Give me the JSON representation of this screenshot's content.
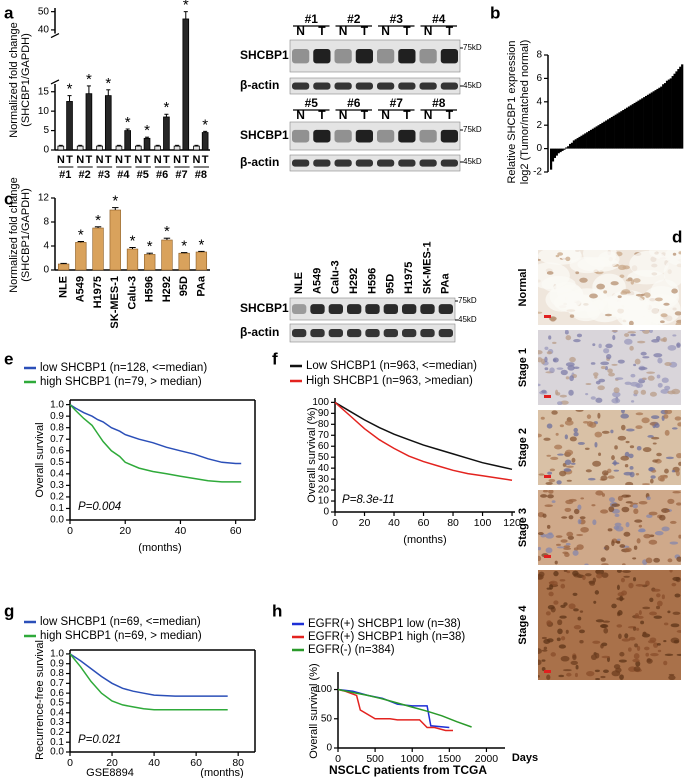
{
  "panel_labels": [
    "a",
    "b",
    "c",
    "d",
    "e",
    "f",
    "g",
    "h"
  ],
  "chart_data": [
    {
      "type": "bar",
      "y_label": [
        "Normalized fold change",
        "(SHCBP1/GAPDH)"
      ],
      "categories": [
        "#1",
        "#2",
        "#3",
        "#4",
        "#5",
        "#6",
        "#7",
        "#8"
      ],
      "series": [
        {
          "name": "N",
          "color": "#e6e6e6",
          "values": [
            1,
            1,
            1,
            1,
            1,
            1,
            1,
            1
          ],
          "errors": [
            0.2,
            0.2,
            0.2,
            0.2,
            0.2,
            0.2,
            0.2,
            0.2
          ]
        },
        {
          "name": "T",
          "color": "#262626",
          "values": [
            12.5,
            14.5,
            14,
            5,
            3,
            8.5,
            46,
            4.5
          ],
          "errors": [
            1.5,
            2,
            1.5,
            0.4,
            0.3,
            0.7,
            4,
            0.3
          ],
          "starred": true
        }
      ],
      "significance_label": "*",
      "ylim": [
        0,
        52
      ],
      "axis_break": [
        17,
        38
      ],
      "yticks": [
        0,
        5,
        10,
        15,
        40,
        50
      ]
    },
    {
      "type": "bar",
      "y_label": [
        "Relative SHCBP1 expression",
        "log2 (Tumor/matched normal)"
      ],
      "values": [
        -1.8,
        -1.1,
        -0.8,
        -0.6,
        -0.4,
        -0.3,
        -0.2,
        -0.1,
        0.1,
        0.2,
        0.4,
        0.5,
        0.7,
        0.8,
        0.9,
        1.0,
        1.1,
        1.2,
        1.3,
        1.4,
        1.5,
        1.6,
        1.7,
        1.8,
        1.9,
        2.0,
        2.1,
        2.2,
        2.3,
        2.4,
        2.5,
        2.6,
        2.7,
        2.8,
        2.9,
        3.0,
        3.1,
        3.2,
        3.3,
        3.4,
        3.5,
        3.6,
        3.7,
        3.8,
        3.9,
        4.0,
        4.1,
        4.2,
        4.3,
        4.4,
        4.5,
        4.6,
        4.7,
        4.8,
        4.9,
        5.0,
        5.1,
        5.2,
        5.3,
        5.5,
        5.6,
        5.8,
        5.9,
        6.0,
        6.2,
        6.4,
        6.6,
        6.8,
        7.0,
        7.2
      ],
      "color": "#000000",
      "ylim": [
        -2,
        8
      ],
      "yticks": [
        -2,
        0,
        2,
        4,
        6,
        8
      ]
    },
    {
      "type": "bar",
      "y_label": [
        "Normalized fold change",
        "(SHCBP1/GAPDH)"
      ],
      "categories": [
        "NLE",
        "A549",
        "H1975",
        "SK-MES-1",
        "Calu-3",
        "H596",
        "H292",
        "95D",
        "PAa"
      ],
      "values": [
        1,
        4.6,
        7,
        10,
        3.5,
        2.6,
        5,
        2.8,
        3
      ],
      "errors": [
        0.1,
        0.15,
        0.2,
        0.4,
        0.25,
        0.2,
        0.3,
        0.1,
        0.1
      ],
      "color": "#d9a25c",
      "significant": [
        false,
        true,
        true,
        true,
        true,
        true,
        true,
        true,
        true
      ],
      "significance_label": "*",
      "ylim": [
        0,
        12
      ],
      "yticks": [
        0,
        4,
        8,
        12
      ]
    },
    {
      "type": "line",
      "y_label": "Overall survival",
      "x_label": "(months)",
      "annotation": "P=0.004",
      "frame": true,
      "series": [
        {
          "name": "low SHCBP1 (n=128, <=median)",
          "color": "#2b4fb8",
          "x": [
            0,
            2,
            5,
            8,
            10,
            12,
            15,
            18,
            20,
            25,
            30,
            35,
            40,
            45,
            50,
            55,
            60,
            62
          ],
          "values": [
            1,
            0.97,
            0.93,
            0.9,
            0.87,
            0.85,
            0.8,
            0.77,
            0.74,
            0.7,
            0.67,
            0.63,
            0.6,
            0.57,
            0.53,
            0.5,
            0.49,
            0.49
          ]
        },
        {
          "name": "high SHCBP1 (n=79, > median)",
          "color": "#2faa3a",
          "x": [
            0,
            2,
            5,
            8,
            10,
            12,
            15,
            18,
            20,
            25,
            30,
            35,
            40,
            45,
            50,
            55,
            60,
            62
          ],
          "values": [
            1,
            0.95,
            0.88,
            0.82,
            0.75,
            0.68,
            0.6,
            0.55,
            0.5,
            0.45,
            0.42,
            0.4,
            0.38,
            0.36,
            0.34,
            0.33,
            0.33,
            0.33
          ]
        }
      ],
      "xlim": [
        0,
        67
      ],
      "xticks": [
        0,
        20,
        40,
        60
      ],
      "ylim": [
        0,
        1.04
      ],
      "yticks": [
        {
          "value": 0,
          "label": "0.0"
        },
        {
          "value": 0.1,
          "label": "0.1"
        },
        {
          "value": 0.2,
          "label": "0.2"
        },
        {
          "value": 0.3,
          "label": "0.3"
        },
        {
          "value": 0.4,
          "label": "0.4"
        },
        {
          "value": 0.5,
          "label": "0.5"
        },
        {
          "value": 0.6,
          "label": "0.6"
        },
        {
          "value": 0.7,
          "label": "0.7"
        },
        {
          "value": 0.8,
          "label": "0.8"
        },
        {
          "value": 0.9,
          "label": "0.9"
        },
        {
          "value": 1,
          "label": "1.0"
        }
      ]
    },
    {
      "type": "line",
      "y_label": "Overall survival (%)",
      "x_label": "(months)",
      "annotation": "P=8.3e-11",
      "frame": false,
      "series": [
        {
          "name": "Low SHCBP1 (n=963, <=median)",
          "color": "#111111",
          "x": [
            0,
            10,
            20,
            30,
            40,
            50,
            60,
            70,
            80,
            90,
            100,
            110,
            120
          ],
          "values": [
            100,
            92,
            84,
            77,
            71,
            66,
            61,
            57,
            53,
            49,
            45,
            42,
            39
          ]
        },
        {
          "name": "High SHCBP1 (n=963, >median)",
          "color": "#e3231f",
          "x": [
            0,
            10,
            20,
            30,
            40,
            50,
            60,
            70,
            80,
            90,
            100,
            110,
            120
          ],
          "values": [
            100,
            88,
            76,
            66,
            58,
            51,
            46,
            42,
            38,
            35,
            33,
            31,
            29
          ]
        }
      ],
      "xlim": [
        0,
        122
      ],
      "xticks": [
        0,
        20,
        40,
        60,
        80,
        100,
        120
      ],
      "ylim": [
        0,
        104
      ],
      "yticks": [
        0,
        10,
        20,
        30,
        40,
        50,
        60,
        70,
        80,
        90,
        100
      ]
    },
    {
      "type": "line",
      "y_label": "Recurrence-free survival",
      "x_label": "(months)",
      "annotation": "P=0.021",
      "note": "GSE8894",
      "frame": true,
      "series": [
        {
          "name": "low  SHCBP1 (n=69, <=median)",
          "color": "#2b4fb8",
          "x": [
            0,
            5,
            10,
            15,
            20,
            25,
            30,
            35,
            40,
            50,
            60,
            70,
            75
          ],
          "values": [
            1,
            0.93,
            0.85,
            0.77,
            0.7,
            0.65,
            0.62,
            0.6,
            0.58,
            0.57,
            0.57,
            0.57,
            0.57
          ]
        },
        {
          "name": "high SHCBP1 (n=69, > median)",
          "color": "#2faa3a",
          "x": [
            0,
            5,
            10,
            15,
            20,
            25,
            30,
            35,
            40,
            50,
            60,
            70,
            75
          ],
          "values": [
            1,
            0.87,
            0.72,
            0.6,
            0.52,
            0.48,
            0.46,
            0.44,
            0.43,
            0.43,
            0.43,
            0.43,
            0.43
          ]
        }
      ],
      "xlim": [
        0,
        88
      ],
      "xticks": [
        0,
        20,
        40,
        60,
        80
      ],
      "ylim": [
        0,
        1.04
      ],
      "yticks": [
        {
          "value": 0,
          "label": "0.0"
        },
        {
          "value": 0.1,
          "label": "0.1"
        },
        {
          "value": 0.2,
          "label": "0.2"
        },
        {
          "value": 0.3,
          "label": "0.3"
        },
        {
          "value": 0.4,
          "label": "0.4"
        },
        {
          "value": 0.5,
          "label": "0.5"
        },
        {
          "value": 0.6,
          "label": "0.6"
        },
        {
          "value": 0.7,
          "label": "0.7"
        },
        {
          "value": 0.8,
          "label": "0.8"
        },
        {
          "value": 0.9,
          "label": "0.9"
        },
        {
          "value": 1,
          "label": "1.0"
        }
      ]
    },
    {
      "type": "line",
      "y_label": "Overall survival (%)",
      "x_label": "Days",
      "title": "NSCLC patients from TCGA",
      "frame": false,
      "series": [
        {
          "name": "EGFR(+) SHCBP1 low (n=38)",
          "color": "#1d2fd6",
          "x": [
            0,
            200,
            400,
            600,
            800,
            1000,
            1200,
            1250,
            1500
          ],
          "values": [
            100,
            97,
            90,
            85,
            75,
            72,
            72,
            38,
            35
          ]
        },
        {
          "name": "EGFR(+) SHCBP1 high (n=38)",
          "color": "#e3231f",
          "x": [
            0,
            100,
            250,
            300,
            500,
            700,
            800,
            1100,
            1200,
            1300,
            1450,
            1550
          ],
          "values": [
            100,
            97,
            90,
            65,
            50,
            50,
            48,
            48,
            35,
            35,
            30,
            30
          ]
        },
        {
          "name": "EGFR(-) (n=384)",
          "color": "#2a9a2a",
          "x": [
            0,
            200,
            400,
            600,
            800,
            1000,
            1200,
            1400,
            1600,
            1800
          ],
          "values": [
            100,
            95,
            90,
            84,
            77,
            70,
            63,
            55,
            45,
            36
          ]
        }
      ],
      "xlim": [
        0,
        2250
      ],
      "xticks": [
        0,
        500,
        1000,
        1500,
        2000
      ],
      "ylim": [
        0,
        130
      ],
      "yticks": [
        0,
        50,
        100
      ]
    }
  ],
  "blots": [
    {
      "groups": [
        "#1",
        "#2",
        "#3",
        "#4"
      ],
      "lanes": [
        "N",
        "T"
      ],
      "rows": [
        "SHCBP1",
        "β-actin"
      ],
      "markers": [
        "75kD",
        "45kD"
      ]
    },
    {
      "groups": [
        "#5",
        "#6",
        "#7",
        "#8"
      ],
      "lanes": [
        "N",
        "T"
      ],
      "rows": [
        "SHCBP1",
        "β-actin"
      ],
      "markers": [
        "75kD",
        "45kD"
      ]
    },
    {
      "lanes": [
        "NLE",
        "A549",
        "Calu-3",
        "H292",
        "H596",
        "95D",
        "H1975",
        "SK-MES-1",
        "PAa"
      ],
      "rows": [
        "SHCBP1",
        "β-actin"
      ],
      "markers": [
        "75kD",
        "45kD"
      ]
    }
  ],
  "ihc": {
    "stages": [
      "Normal",
      "Stage 1",
      "Stage 2",
      "Stage 3",
      "Stage 4"
    ]
  }
}
